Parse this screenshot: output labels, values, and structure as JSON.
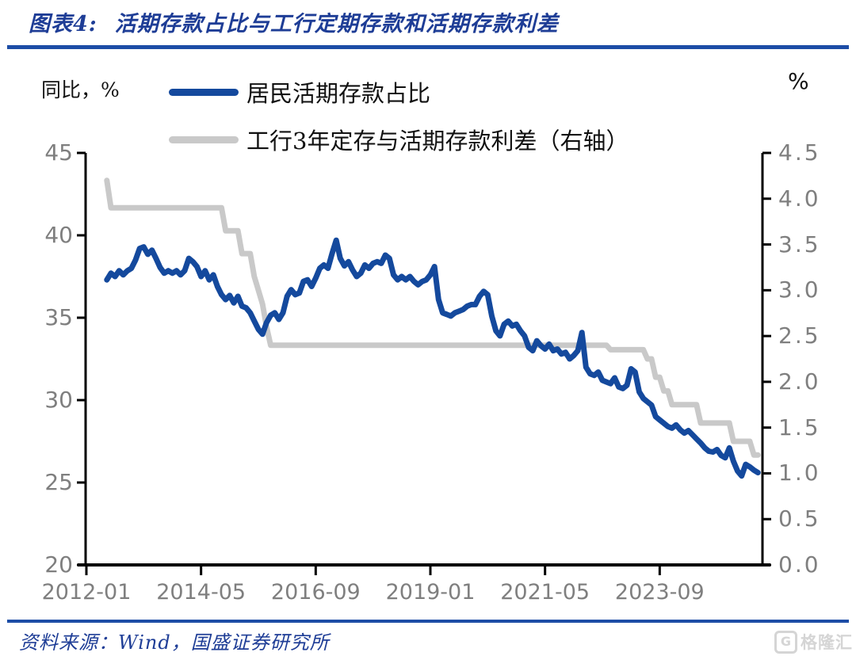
{
  "header": {
    "prefix": "图表4:",
    "title": "活期存款占比与工行定期存款和活期存款利差"
  },
  "chart": {
    "left_unit": "同比，%",
    "right_unit": "%"
  },
  "chart_data": {
    "type": "line",
    "title": "活期存款占比与工行定期存款和活期存款利差",
    "x_start": "2012-06",
    "x_end": "2025-09",
    "x_frequency": "monthly",
    "x_ticks": [
      {
        "label": "2012-01",
        "i": 0
      },
      {
        "label": "2014-05",
        "i": 28
      },
      {
        "label": "2016-09",
        "i": 56
      },
      {
        "label": "2019-01",
        "i": 84
      },
      {
        "label": "2021-05",
        "i": 112
      },
      {
        "label": "2023-09",
        "i": 140
      }
    ],
    "left_axis": {
      "label": "同比，%",
      "min": 20,
      "max": 45,
      "ticks": [
        45,
        40,
        35,
        30,
        25,
        20
      ]
    },
    "right_axis": {
      "label": "%",
      "min": 0,
      "max": 4.5,
      "ticks": [
        "4.5",
        "4.0",
        "3.5",
        "3.0",
        "2.5",
        "2.0",
        "1.5",
        "1.0",
        "0.5",
        "0.0"
      ]
    },
    "grid": false,
    "legend_position": "top-left",
    "series": [
      {
        "name": "工行3年定存与活期存款利差（右轴）",
        "axis": "right",
        "color": "#c9c9c9",
        "start_month_index": 5,
        "values": [
          4.2,
          3.9,
          3.9,
          3.9,
          3.9,
          3.9,
          3.9,
          3.9,
          3.9,
          3.9,
          3.9,
          3.9,
          3.9,
          3.9,
          3.9,
          3.9,
          3.9,
          3.9,
          3.9,
          3.9,
          3.9,
          3.9,
          3.9,
          3.9,
          3.9,
          3.9,
          3.9,
          3.9,
          3.9,
          3.65,
          3.65,
          3.65,
          3.65,
          3.4,
          3.4,
          3.4,
          3.15,
          3.0,
          2.85,
          2.6,
          2.4,
          2.4,
          2.4,
          2.4,
          2.4,
          2.4,
          2.4,
          2.4,
          2.4,
          2.4,
          2.4,
          2.4,
          2.4,
          2.4,
          2.4,
          2.4,
          2.4,
          2.4,
          2.4,
          2.4,
          2.4,
          2.4,
          2.4,
          2.4,
          2.4,
          2.4,
          2.4,
          2.4,
          2.4,
          2.4,
          2.4,
          2.4,
          2.4,
          2.4,
          2.4,
          2.4,
          2.4,
          2.4,
          2.4,
          2.4,
          2.4,
          2.4,
          2.4,
          2.4,
          2.4,
          2.4,
          2.4,
          2.4,
          2.4,
          2.4,
          2.4,
          2.4,
          2.4,
          2.4,
          2.4,
          2.4,
          2.4,
          2.4,
          2.4,
          2.4,
          2.4,
          2.4,
          2.4,
          2.4,
          2.4,
          2.4,
          2.4,
          2.4,
          2.4,
          2.4,
          2.4,
          2.4,
          2.4,
          2.4,
          2.4,
          2.4,
          2.4,
          2.4,
          2.4,
          2.4,
          2.4,
          2.4,
          2.4,
          2.35,
          2.35,
          2.35,
          2.35,
          2.35,
          2.35,
          2.35,
          2.35,
          2.35,
          2.25,
          2.25,
          2.05,
          2.05,
          1.9,
          1.9,
          1.75,
          1.75,
          1.75,
          1.75,
          1.75,
          1.75,
          1.75,
          1.55,
          1.55,
          1.55,
          1.55,
          1.55,
          1.55,
          1.55,
          1.55,
          1.35,
          1.35,
          1.35,
          1.35,
          1.35,
          1.2,
          1.2
        ]
      },
      {
        "name": "居民活期存款占比",
        "axis": "left",
        "color": "#14499d",
        "start_month_index": 5,
        "values": [
          37.3,
          37.7,
          37.5,
          37.85,
          37.6,
          37.85,
          38.0,
          38.5,
          39.2,
          39.3,
          38.85,
          39.1,
          38.6,
          38.05,
          37.7,
          37.85,
          37.7,
          37.85,
          37.6,
          37.85,
          38.6,
          38.4,
          38.1,
          37.5,
          37.85,
          37.3,
          37.6,
          36.9,
          36.4,
          36.1,
          36.35,
          35.9,
          36.3,
          35.7,
          35.6,
          35.3,
          34.8,
          34.3,
          34.0,
          34.7,
          35.15,
          35.3,
          34.9,
          35.3,
          36.3,
          36.7,
          36.4,
          36.5,
          37.2,
          37.3,
          36.9,
          37.4,
          38.0,
          38.2,
          38.0,
          38.9,
          39.7,
          38.6,
          38.15,
          38.4,
          37.9,
          37.5,
          37.7,
          38.2,
          38.0,
          38.3,
          38.4,
          38.3,
          38.8,
          38.6,
          37.6,
          37.3,
          37.5,
          37.3,
          37.5,
          37.2,
          37.0,
          37.2,
          37.3,
          37.6,
          38.1,
          36.1,
          35.3,
          35.2,
          35.1,
          35.3,
          35.4,
          35.5,
          35.7,
          35.8,
          35.8,
          36.3,
          36.6,
          36.4,
          35.1,
          34.2,
          33.9,
          34.6,
          34.8,
          34.5,
          34.6,
          34.2,
          33.9,
          33.2,
          33.0,
          33.6,
          33.3,
          33.1,
          33.4,
          33.0,
          33.1,
          32.8,
          32.9,
          32.5,
          32.7,
          33.0,
          34.1,
          32.0,
          31.6,
          31.5,
          31.7,
          31.2,
          31.1,
          31.0,
          31.35,
          30.8,
          30.7,
          30.9,
          31.9,
          31.7,
          30.5,
          30.1,
          29.9,
          29.7,
          29.0,
          28.8,
          28.6,
          28.4,
          28.3,
          28.5,
          28.2,
          28.0,
          28.15,
          27.9,
          27.65,
          27.4,
          27.1,
          26.9,
          26.85,
          27.0,
          26.65,
          26.5,
          27.1,
          26.3,
          25.7,
          25.4,
          26.1,
          25.95,
          25.75,
          25.6
        ]
      }
    ]
  },
  "colors": {
    "accent_navy": "#1e3d96",
    "divider_blue": "#1d4da6",
    "series_blue": "#14499d",
    "series_gray": "#c9c9c9",
    "tick_gray": "#7f7f7f",
    "axis_black": "#000000",
    "watermark_gray": "#d5d5d5"
  },
  "footer": {
    "source": "资料来源：Wind，国盛证券研究所",
    "logo_letter": "G",
    "logo_text": "格隆汇"
  }
}
